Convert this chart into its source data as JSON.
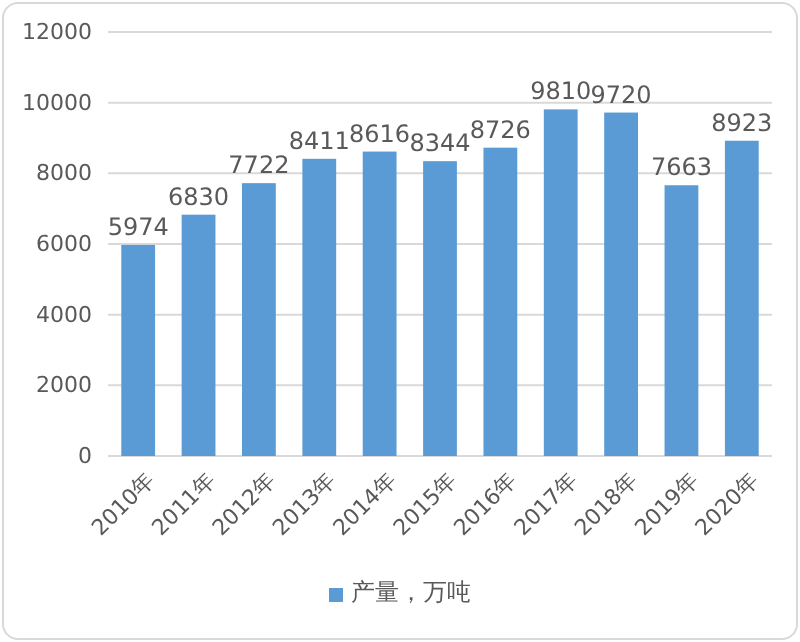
{
  "chart_data": {
    "type": "bar",
    "categories": [
      "2010年",
      "2011年",
      "2012年",
      "2013年",
      "2014年",
      "2015年",
      "2016年",
      "2017年",
      "2018年",
      "2019年",
      "2020年"
    ],
    "series": [
      {
        "name": "产量，万吨",
        "color": "#5b9bd5",
        "values": [
          5974,
          6830,
          7722,
          8411,
          8616,
          8344,
          8726,
          9810,
          9720,
          7663,
          8923
        ]
      }
    ],
    "ylim": [
      0,
      12000
    ],
    "yticks": [
      0,
      2000,
      4000,
      6000,
      8000,
      10000,
      12000
    ],
    "grid": "y",
    "legend": "bottom",
    "data_labels": true
  }
}
